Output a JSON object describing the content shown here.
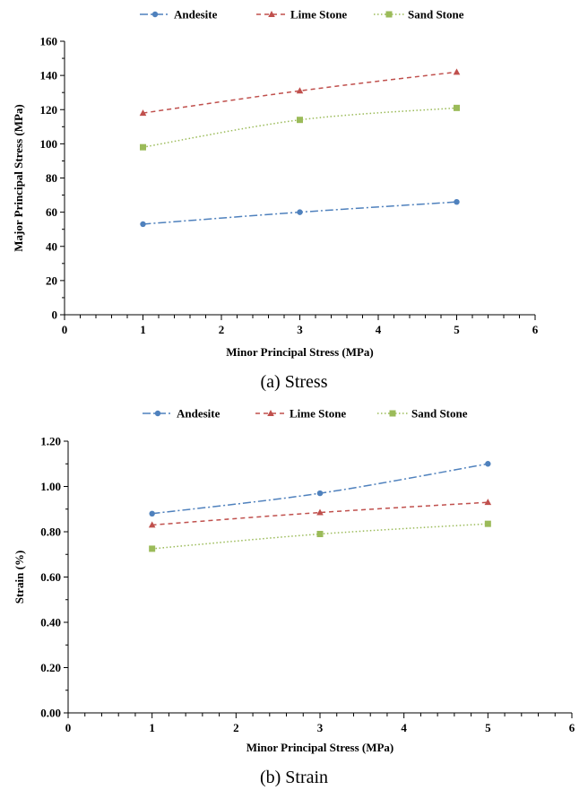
{
  "chart_data": [
    {
      "type": "line",
      "caption": "(a) Stress",
      "xlabel": "Minor Principal Stress (MPa)",
      "ylabel": "Major Principal Stress (MPa)",
      "xlim": [
        0,
        6
      ],
      "ylim": [
        0,
        160
      ],
      "xticks": [
        0,
        1,
        2,
        3,
        4,
        5,
        6
      ],
      "yticks": [
        0,
        20,
        40,
        60,
        80,
        100,
        120,
        140,
        160
      ],
      "ytick_decimals": 0,
      "grid": false,
      "legend_position": "top",
      "x": [
        1,
        3,
        5
      ],
      "series": [
        {
          "name": "Andesite",
          "values": [
            53,
            60,
            66
          ],
          "color": "#4f81bd",
          "marker": "circle",
          "dash": "dashdot"
        },
        {
          "name": "Lime Stone",
          "values": [
            118,
            131,
            142
          ],
          "color": "#c0504d",
          "marker": "triangle",
          "dash": "dashed"
        },
        {
          "name": "Sand Stone",
          "values": [
            98,
            114,
            121
          ],
          "color": "#9bbb59",
          "marker": "square",
          "dash": "dotted"
        }
      ]
    },
    {
      "type": "line",
      "caption": "(b) Strain",
      "xlabel": "Minor Principal Stress (MPa)",
      "ylabel": "Strain (%)",
      "xlim": [
        0,
        6
      ],
      "ylim": [
        0,
        1.2
      ],
      "xticks": [
        0,
        1,
        2,
        3,
        4,
        5,
        6
      ],
      "yticks": [
        0,
        0.2,
        0.4,
        0.6,
        0.8,
        1.0,
        1.2
      ],
      "ytick_decimals": 2,
      "grid": false,
      "legend_position": "top",
      "x": [
        1,
        3,
        5
      ],
      "series": [
        {
          "name": "Andesite",
          "values": [
            0.88,
            0.97,
            1.1
          ],
          "color": "#4f81bd",
          "marker": "circle",
          "dash": "dashdot"
        },
        {
          "name": "Lime Stone",
          "values": [
            0.83,
            0.885,
            0.93
          ],
          "color": "#c0504d",
          "marker": "triangle",
          "dash": "dashed"
        },
        {
          "name": "Sand Stone",
          "values": [
            0.725,
            0.79,
            0.835
          ],
          "color": "#9bbb59",
          "marker": "square",
          "dash": "dotted"
        }
      ]
    }
  ]
}
